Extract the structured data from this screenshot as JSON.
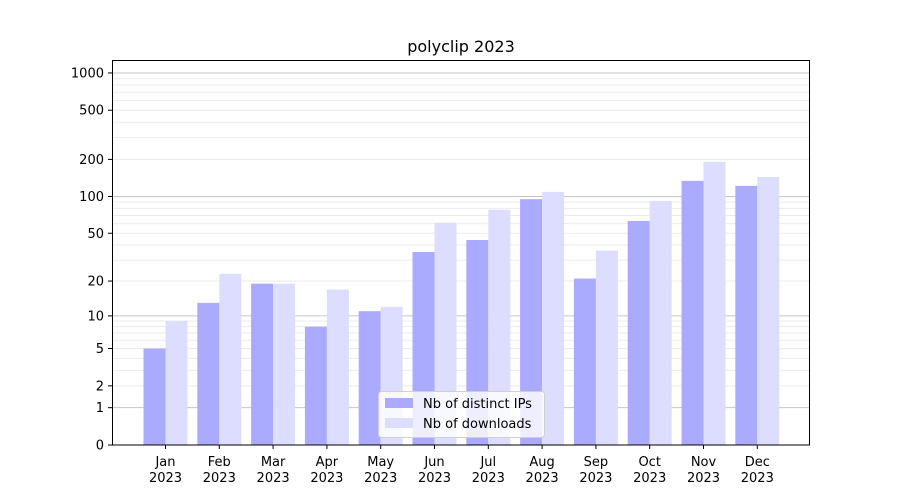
{
  "chart_data": {
    "type": "bar",
    "title": "polyclip 2023",
    "xlabel": "",
    "ylabel": "",
    "yscale": "log10(1+y)",
    "ylim": [
      0,
      1273
    ],
    "grid": true,
    "legend_position": "bottom-center",
    "categories": [
      "Jan\n2023",
      "Feb\n2023",
      "Mar\n2023",
      "Apr\n2023",
      "May\n2023",
      "Jun\n2023",
      "Jul\n2023",
      "Aug\n2023",
      "Sep\n2023",
      "Oct\n2023",
      "Nov\n2023",
      "Dec\n2023"
    ],
    "yticks": [
      0,
      1,
      2,
      5,
      10,
      20,
      50,
      100,
      200,
      500,
      1000
    ],
    "ytick_labels": [
      "0",
      "1",
      "2",
      "5",
      "10",
      "20",
      "50",
      "100",
      "200",
      "500",
      "1000"
    ],
    "series": [
      {
        "name": "Nb of distinct IPs",
        "color": "#aaaaff",
        "values": [
          5,
          13,
          19,
          8,
          11,
          35,
          44,
          95,
          21,
          63,
          134,
          122
        ]
      },
      {
        "name": "Nb of downloads",
        "color": "#ddddff",
        "values": [
          9,
          23,
          19,
          17,
          12,
          61,
          78,
          109,
          36,
          92,
          191,
          144
        ]
      }
    ]
  }
}
